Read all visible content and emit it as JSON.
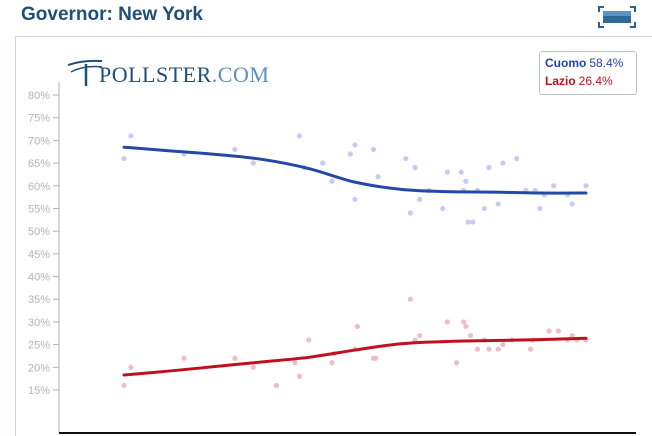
{
  "title": "Governor: New York",
  "logo": {
    "brand": "POLLSTER",
    "suffix": ".COM"
  },
  "legend": [
    {
      "name": "Cuomo",
      "value": "58.4%"
    },
    {
      "name": "Lazio",
      "value": "26.4%"
    }
  ],
  "colors": {
    "cuomo_line": "#2547a8",
    "cuomo_dots": "#c4cdef",
    "lazio_line": "#c0101f",
    "lazio_dots": "#f1bcc4",
    "title": "#1f4e79",
    "axis_text": "#b3b3b3"
  },
  "icons": {
    "embed": "embed-button-icon",
    "logo_mark": "pollster-lines-icon"
  },
  "chart_data": {
    "type": "scatter",
    "title": "Governor: New York",
    "xlabel": "",
    "ylabel": "",
    "ylim": [
      10,
      83
    ],
    "xlim": [
      0,
      100
    ],
    "yticks": [
      15,
      20,
      25,
      30,
      35,
      40,
      45,
      50,
      55,
      60,
      65,
      70,
      75,
      80
    ],
    "ytick_labels": [
      "15%",
      "20%",
      "25%",
      "30%",
      "35%",
      "40%",
      "45%",
      "50%",
      "55%",
      "60%",
      "65%",
      "70%",
      "75%",
      "80%"
    ],
    "grid": false,
    "legend_position": "top-right",
    "series": [
      {
        "name": "Cuomo",
        "trend": [
          [
            0,
            68.5
          ],
          [
            10,
            67.7
          ],
          [
            20,
            66.9
          ],
          [
            30,
            65.8
          ],
          [
            40,
            63.8
          ],
          [
            50,
            60.8
          ],
          [
            60,
            59.2
          ],
          [
            70,
            58.7
          ],
          [
            80,
            58.6
          ],
          [
            90,
            58.4
          ],
          [
            100,
            58.4
          ]
        ],
        "points": [
          [
            0,
            66
          ],
          [
            1.5,
            71
          ],
          [
            13,
            67
          ],
          [
            24,
            68
          ],
          [
            28,
            65
          ],
          [
            38,
            71
          ],
          [
            39,
            64
          ],
          [
            43,
            65
          ],
          [
            45,
            61
          ],
          [
            49,
            67
          ],
          [
            50,
            69
          ],
          [
            50,
            57
          ],
          [
            54,
            68
          ],
          [
            55,
            62
          ],
          [
            61,
            66
          ],
          [
            62,
            54
          ],
          [
            63,
            64
          ],
          [
            64,
            57
          ],
          [
            66,
            59
          ],
          [
            69,
            55
          ],
          [
            70,
            63
          ],
          [
            73,
            63
          ],
          [
            73.5,
            59
          ],
          [
            74,
            61
          ],
          [
            74.5,
            52
          ],
          [
            75.5,
            52
          ],
          [
            76.5,
            59
          ],
          [
            78,
            55
          ],
          [
            79,
            64
          ],
          [
            81,
            56
          ],
          [
            82,
            65
          ],
          [
            85,
            66
          ],
          [
            87,
            59
          ],
          [
            89,
            59
          ],
          [
            90,
            55
          ],
          [
            91,
            58
          ],
          [
            93,
            60
          ],
          [
            96,
            58
          ],
          [
            97,
            56
          ],
          [
            100,
            60
          ]
        ]
      },
      {
        "name": "Lazio",
        "trend": [
          [
            0,
            18.3
          ],
          [
            10,
            19.2
          ],
          [
            20,
            20.2
          ],
          [
            30,
            21.2
          ],
          [
            40,
            22.2
          ],
          [
            50,
            23.8
          ],
          [
            60,
            25.2
          ],
          [
            70,
            25.7
          ],
          [
            80,
            25.9
          ],
          [
            90,
            26.1
          ],
          [
            100,
            26.4
          ]
        ],
        "points": [
          [
            0,
            16
          ],
          [
            1.5,
            20
          ],
          [
            13,
            22
          ],
          [
            24,
            22
          ],
          [
            28,
            20
          ],
          [
            33,
            16
          ],
          [
            37,
            21
          ],
          [
            38,
            18
          ],
          [
            40,
            26
          ],
          [
            45,
            21
          ],
          [
            45.5,
            23
          ],
          [
            50,
            24
          ],
          [
            50.5,
            29
          ],
          [
            54,
            22
          ],
          [
            54.5,
            22
          ],
          [
            62,
            35
          ],
          [
            63,
            26
          ],
          [
            64,
            27
          ],
          [
            70,
            30
          ],
          [
            72,
            21
          ],
          [
            73.5,
            30
          ],
          [
            74,
            29
          ],
          [
            75,
            27
          ],
          [
            76.5,
            24
          ],
          [
            78,
            26
          ],
          [
            79,
            24
          ],
          [
            81,
            24
          ],
          [
            82,
            25
          ],
          [
            84,
            26
          ],
          [
            88,
            24
          ],
          [
            88.5,
            26
          ],
          [
            92,
            28
          ],
          [
            94,
            28
          ],
          [
            96,
            26
          ],
          [
            97,
            27
          ],
          [
            98,
            26
          ],
          [
            100,
            26
          ]
        ]
      }
    ]
  }
}
